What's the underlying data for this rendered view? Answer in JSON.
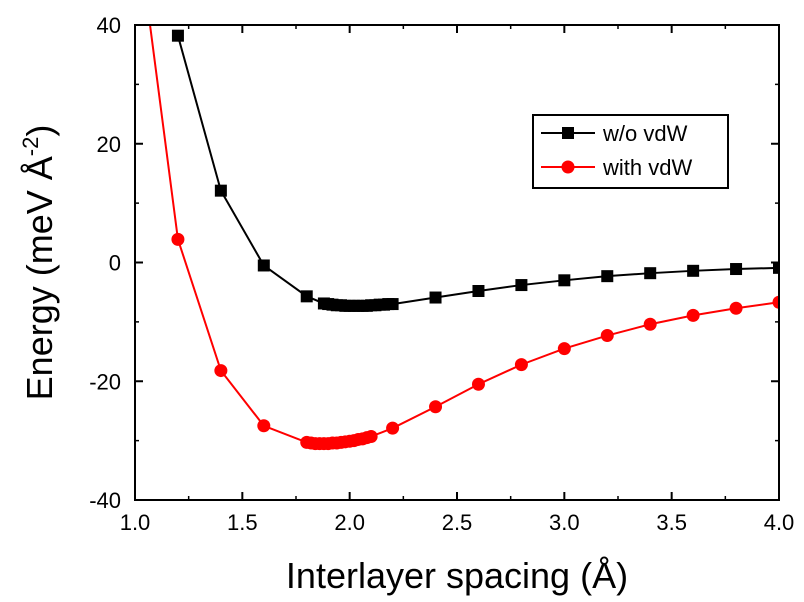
{
  "chart_data": {
    "type": "line",
    "xlabel": "Interlayer spacing (Å)",
    "ylabel": "Energy (meV Å",
    "ylabel_sup": "-2",
    "ylabel_close": ")",
    "xlim": [
      1.0,
      4.0
    ],
    "ylim": [
      -40,
      40
    ],
    "x_ticks": [
      1.0,
      1.5,
      2.0,
      2.5,
      3.0,
      3.5,
      4.0
    ],
    "x_tick_labels": [
      "1.0",
      "1.5",
      "2.0",
      "2.5",
      "3.0",
      "3.5",
      "4.0"
    ],
    "y_ticks": [
      -40,
      -20,
      0,
      20,
      40
    ],
    "y_tick_labels": [
      "-40",
      "-20",
      "0",
      "20",
      "40"
    ],
    "grid": false,
    "legend_position": "top-right",
    "series": [
      {
        "name": "w/o vdW",
        "color": "#000000",
        "marker": "square",
        "x": [
          1.2,
          1.4,
          1.6,
          1.8,
          1.88,
          1.9,
          1.92,
          1.94,
          1.96,
          1.98,
          2.0,
          2.02,
          2.04,
          2.06,
          2.08,
          2.1,
          2.12,
          2.14,
          2.16,
          2.18,
          2.2,
          2.4,
          2.6,
          2.8,
          3.0,
          3.2,
          3.4,
          3.6,
          3.8,
          4.0
        ],
        "y": [
          38.2,
          12.1,
          -0.5,
          -5.7,
          -6.9,
          -7.0,
          -7.1,
          -7.2,
          -7.2,
          -7.3,
          -7.3,
          -7.3,
          -7.3,
          -7.3,
          -7.3,
          -7.2,
          -7.2,
          -7.1,
          -7.1,
          -7.0,
          -7.0,
          -5.9,
          -4.8,
          -3.8,
          -3.0,
          -2.3,
          -1.8,
          -1.4,
          -1.1,
          -0.9
        ]
      },
      {
        "name": "with vdW",
        "color": "#ff0000",
        "marker": "circle",
        "x": [
          1.2,
          1.4,
          1.6,
          1.8,
          1.82,
          1.84,
          1.86,
          1.88,
          1.9,
          1.92,
          1.94,
          1.96,
          1.98,
          2.0,
          2.02,
          2.04,
          2.06,
          2.08,
          2.1,
          2.2,
          2.4,
          2.6,
          2.8,
          3.0,
          3.2,
          3.4,
          3.6,
          3.8,
          4.0
        ],
        "y": [
          3.9,
          -18.2,
          -27.5,
          -30.3,
          -30.4,
          -30.5,
          -30.5,
          -30.5,
          -30.5,
          -30.4,
          -30.4,
          -30.3,
          -30.2,
          -30.1,
          -30.0,
          -29.8,
          -29.7,
          -29.5,
          -29.3,
          -27.9,
          -24.3,
          -20.5,
          -17.2,
          -14.5,
          -12.3,
          -10.4,
          -8.9,
          -7.7,
          -6.7
        ]
      }
    ],
    "red_curve_start": {
      "x": 1.07,
      "y": 40
    }
  }
}
